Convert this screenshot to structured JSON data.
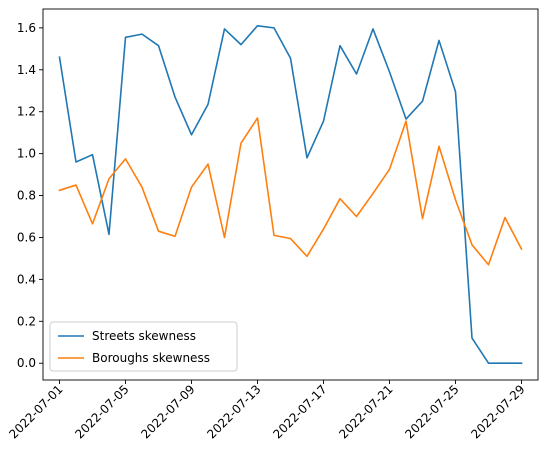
{
  "chart_data": {
    "type": "line",
    "title": "",
    "xlabel": "",
    "ylabel": "",
    "x": [
      "2022-07-01",
      "2022-07-02",
      "2022-07-03",
      "2022-07-04",
      "2022-07-05",
      "2022-07-06",
      "2022-07-07",
      "2022-07-08",
      "2022-07-09",
      "2022-07-10",
      "2022-07-11",
      "2022-07-12",
      "2022-07-13",
      "2022-07-14",
      "2022-07-15",
      "2022-07-16",
      "2022-07-17",
      "2022-07-18",
      "2022-07-19",
      "2022-07-20",
      "2022-07-21",
      "2022-07-22",
      "2022-07-23",
      "2022-07-24",
      "2022-07-25",
      "2022-07-26",
      "2022-07-27",
      "2022-07-28",
      "2022-07-29"
    ],
    "xlim": [
      "2022-06-30",
      "2022-07-30"
    ],
    "xticks": [
      "2022-07-01",
      "2022-07-05",
      "2022-07-09",
      "2022-07-13",
      "2022-07-17",
      "2022-07-21",
      "2022-07-25",
      "2022-07-29"
    ],
    "ylim": [
      -0.08,
      1.69
    ],
    "yticks": [
      "0.0",
      "0.2",
      "0.4",
      "0.6",
      "0.8",
      "1.0",
      "1.2",
      "1.4",
      "1.6"
    ],
    "grid": false,
    "legend_position": "lower-left",
    "series": [
      {
        "name": "Streets skewness",
        "color": "#1f77b4",
        "values": [
          1.46,
          0.96,
          0.995,
          0.615,
          1.555,
          1.57,
          1.515,
          1.27,
          1.09,
          1.235,
          1.595,
          1.52,
          1.61,
          1.6,
          1.455,
          0.98,
          1.155,
          1.515,
          1.38,
          1.595,
          1.39,
          1.165,
          1.25,
          1.54,
          1.295,
          0.12,
          0.0,
          0.0,
          0.0
        ]
      },
      {
        "name": "Boroughs skewness",
        "color": "#ff7f0e",
        "values": [
          0.825,
          0.85,
          0.665,
          0.88,
          0.975,
          0.84,
          0.63,
          0.605,
          0.84,
          0.95,
          0.6,
          1.05,
          1.17,
          0.61,
          0.595,
          0.51,
          0.64,
          0.785,
          0.7,
          0.81,
          0.925,
          1.155,
          0.69,
          1.035,
          0.78,
          0.565,
          0.47,
          0.695,
          0.545
        ]
      }
    ]
  }
}
